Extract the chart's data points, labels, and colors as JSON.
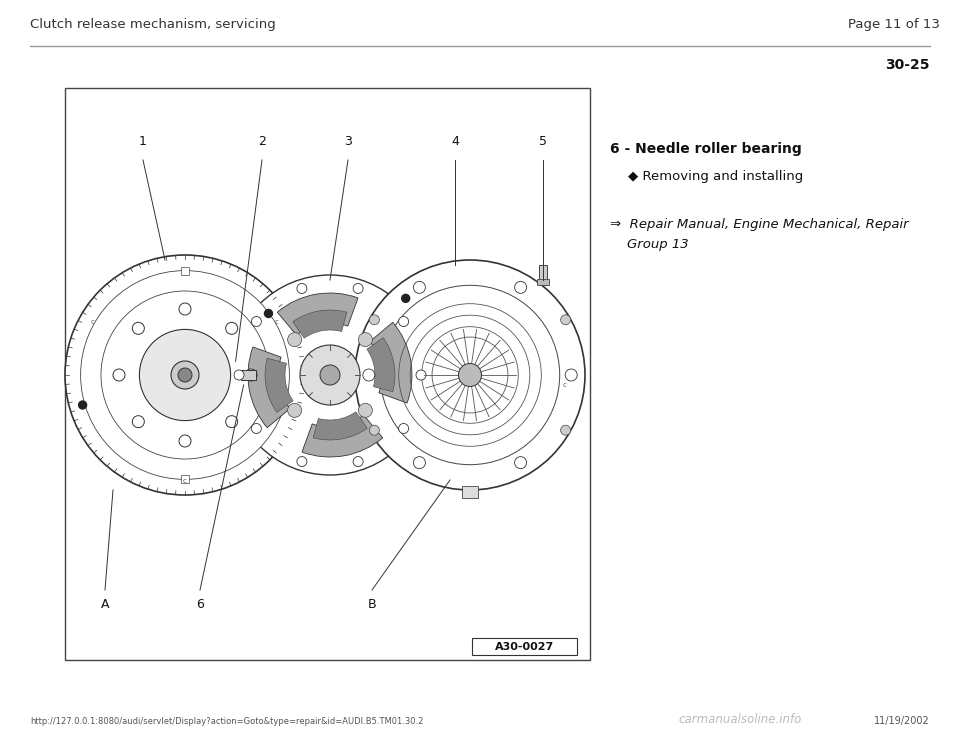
{
  "background_color": "#ffffff",
  "page_title_left": "Clutch release mechanism, servicing",
  "page_title_right": "Page 11 of 13",
  "section_number": "30-25",
  "item_title": "6 - Needle roller bearing",
  "bullet_text": "◆ Removing and installing",
  "ref_line1": "⇒  Repair Manual, Engine Mechanical, Repair",
  "ref_line2": "    Group 13",
  "figure_label": "A30-0027",
  "part_labels": [
    "1",
    "2",
    "3",
    "4",
    "5"
  ],
  "bottom_labels": [
    "A",
    "6",
    "B"
  ],
  "footer_url": "http://127.0.0.1:8080/audi/servlet/Display?action=Goto&type=repair&id=AUDI.B5.TM01.30.2",
  "footer_date": "11/19/2002",
  "footer_watermark": "carmanualsoline.info"
}
